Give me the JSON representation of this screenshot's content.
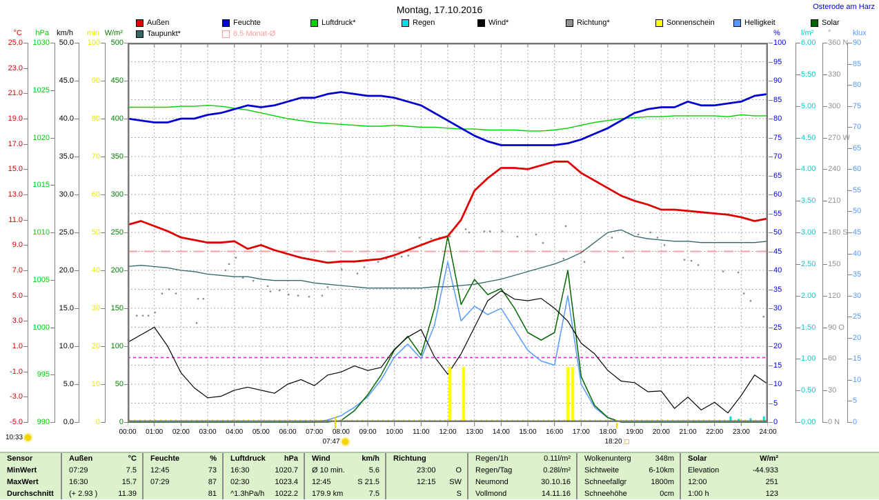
{
  "header": {
    "title": "Montag, 17.10.2016",
    "station": "Osterode am Harz"
  },
  "legend": {
    "row1": [
      {
        "label": "Außen",
        "color": "#e00000"
      },
      {
        "label": "Feuchte",
        "color": "#0000d0"
      },
      {
        "label": "Luftdruck*",
        "color": "#00d000"
      },
      {
        "label": "Regen",
        "color": "#00e0e0"
      },
      {
        "label": "Wind*",
        "color": "#000000"
      },
      {
        "label": "Richtung*",
        "color": "#909090"
      },
      {
        "label": "Sonnenschein",
        "color": "#ffff00"
      },
      {
        "label": "Helligkeit",
        "color": "#5599ff"
      },
      {
        "label": "Solar",
        "color": "#006600"
      }
    ],
    "row2": [
      {
        "label": "Taupunkt*",
        "color": "#336666"
      },
      {
        "label": "8.5 Monat-Ø",
        "color": "#ff9b9b",
        "open": true,
        "text_color": "#ff9b9b"
      }
    ]
  },
  "axes": {
    "left": [
      {
        "unit": "°C",
        "color": "#dd0000",
        "ticks": [
          "25.0",
          "23.0",
          "21.0",
          "19.0",
          "17.0",
          "15.0",
          "13.0",
          "11.0",
          "9.0",
          "7.0",
          "5.0",
          "3.0",
          "1.0",
          "-1.0",
          "-3.0",
          "-5.0"
        ]
      },
      {
        "unit": "hPa",
        "color": "#00cc00",
        "ticks": [
          "1030",
          "1025",
          "1020",
          "1015",
          "1010",
          "1005",
          "1000",
          "995",
          "990"
        ]
      },
      {
        "unit": "km/h",
        "color": "#000000",
        "ticks": [
          "50.0",
          "45.0",
          "40.0",
          "35.0",
          "30.0",
          "25.0",
          "20.0",
          "15.0",
          "10.0",
          "5.0",
          "0.0"
        ]
      },
      {
        "unit": "min",
        "color": "#e8e800",
        "ticks": [
          "100",
          "90",
          "80",
          "70",
          "60",
          "50",
          "40",
          "30",
          "20",
          "10",
          "0"
        ]
      },
      {
        "unit": "W/m²",
        "color": "#008000",
        "ticks": [
          "500",
          "450",
          "400",
          "350",
          "300",
          "250",
          "200",
          "150",
          "100",
          "50",
          "0"
        ]
      }
    ],
    "right": [
      {
        "unit": "%",
        "color": "#0000e0",
        "ticks": [
          "100",
          "95",
          "90",
          "85",
          "80",
          "75",
          "70",
          "65",
          "60",
          "55",
          "50",
          "45",
          "40",
          "35",
          "30",
          "25",
          "20",
          "15",
          "10",
          "5",
          "0"
        ]
      },
      {
        "unit": "l/m²",
        "color": "#00cccc",
        "ticks": [
          "6.00",
          "5.50",
          "5.00",
          "4.50",
          "4.00",
          "3.50",
          "3.00",
          "2.50",
          "2.00",
          "1.50",
          "1.00",
          "0.50",
          "0.00"
        ]
      },
      {
        "unit": "°",
        "color": "#909090",
        "ticks": [
          "360 N",
          "330",
          "300",
          "270 W",
          "240",
          "210",
          "180 S",
          "150",
          "120",
          "90 O",
          "60",
          "30",
          "0 N"
        ]
      },
      {
        "unit": "klux",
        "color": "#5599ff",
        "ticks": [
          "90",
          "85",
          "80",
          "75",
          "70",
          "65",
          "60",
          "55",
          "50",
          "45",
          "40",
          "35",
          "30",
          "25",
          "20",
          "15",
          "10",
          "5",
          "0"
        ]
      }
    ]
  },
  "x_axis": {
    "labels": [
      "00:00",
      "01:00",
      "02:00",
      "03:00",
      "04:00",
      "05:00",
      "06:00",
      "07:00",
      "08:00",
      "09:00",
      "10:00",
      "11:00",
      "12:00",
      "13:00",
      "14:00",
      "15:00",
      "16:00",
      "17:00",
      "18:00",
      "19:00",
      "20:00",
      "21:00",
      "22:00",
      "23:00",
      "24:00"
    ]
  },
  "markers": {
    "sunshine_duration": "10:33",
    "sunrise": "07:47",
    "sunset": "18:20"
  },
  "chart_data": {
    "type": "line",
    "title": "Montag, 17.10.2016",
    "x_unit": "hours",
    "t_start": 0,
    "t_step": 0.5,
    "axis_ranges": {
      "°C": [
        -5,
        25
      ],
      "hPa": [
        990,
        1030
      ],
      "km/h": [
        0,
        50
      ],
      "min": [
        0,
        100
      ],
      "W/m²": [
        0,
        500
      ],
      "%": [
        0,
        100
      ],
      "l/m²": [
        0,
        6
      ],
      "°": [
        0,
        360
      ],
      "klux": [
        0,
        90
      ]
    },
    "series": [
      {
        "name": "Helligkeit",
        "unit": "klux",
        "color": "#5599ff",
        "width": 1.5,
        "values": [
          0,
          0,
          0,
          0,
          0,
          0,
          0,
          0,
          0,
          0,
          0,
          0,
          0,
          0,
          0,
          0.5,
          1.5,
          3.5,
          6,
          10,
          15.5,
          18.5,
          15,
          23,
          38,
          24,
          27.5,
          25.5,
          27,
          22,
          17,
          14.5,
          13.5,
          30,
          9,
          3.5,
          1,
          0,
          0,
          0,
          0,
          0,
          0,
          0,
          0,
          0,
          0,
          0,
          0
        ]
      },
      {
        "name": "Solar",
        "unit": "W/m²",
        "color": "#006600",
        "width": 1.5,
        "values": [
          0,
          0,
          0,
          0,
          0,
          0,
          0,
          0,
          0,
          0,
          0,
          0,
          0,
          0,
          0,
          0,
          2,
          15,
          36,
          62,
          95,
          113,
          88,
          150,
          245,
          155,
          188,
          168,
          176,
          150,
          118,
          108,
          118,
          200,
          60,
          22,
          6,
          0,
          0,
          0,
          0,
          0,
          0,
          0,
          0,
          0,
          0,
          0,
          0
        ]
      },
      {
        "name": "Luftdruck",
        "unit": "hPa",
        "color": "#00d000",
        "width": 1.4,
        "values": [
          1023.2,
          1023.2,
          1023.2,
          1023.2,
          1023.3,
          1023.3,
          1023.4,
          1023.3,
          1023.1,
          1022.9,
          1022.6,
          1022.3,
          1022.0,
          1021.8,
          1021.6,
          1021.5,
          1021.4,
          1021.3,
          1021.2,
          1021.2,
          1021.3,
          1021.2,
          1021.1,
          1021.1,
          1021.0,
          1020.9,
          1020.9,
          1020.8,
          1020.8,
          1020.8,
          1020.7,
          1020.7,
          1020.8,
          1021.0,
          1021.3,
          1021.6,
          1021.8,
          1022.0,
          1022.1,
          1022.2,
          1022.2,
          1022.3,
          1022.3,
          1022.3,
          1022.3,
          1022.2,
          1022.4,
          1022.3,
          1022.3
        ]
      },
      {
        "name": "Taupunkt",
        "unit": "°C",
        "color": "#336666",
        "width": 1.3,
        "values": [
          7.3,
          7.4,
          7.3,
          7.2,
          7.0,
          6.9,
          6.7,
          6.6,
          6.5,
          6.5,
          6.3,
          6.2,
          6.2,
          6.2,
          6.0,
          5.9,
          5.8,
          5.7,
          5.6,
          5.6,
          5.6,
          5.6,
          5.6,
          5.7,
          5.7,
          5.8,
          5.9,
          6.1,
          6.3,
          6.6,
          6.9,
          7.2,
          7.5,
          7.9,
          8.4,
          9.2,
          10.0,
          10.2,
          9.7,
          9.5,
          9.4,
          9.3,
          9.3,
          9.2,
          9.2,
          9.2,
          9.2,
          9.2,
          9.3
        ]
      },
      {
        "name": "Wind",
        "unit": "km/h",
        "color": "#000000",
        "width": 1.2,
        "values": [
          10.5,
          11.5,
          12.5,
          10.0,
          6.5,
          4.5,
          3.2,
          3.4,
          4.2,
          4.6,
          4.2,
          3.8,
          5.0,
          5.6,
          4.8,
          6.2,
          6.6,
          7.4,
          6.8,
          7.2,
          9.6,
          11.2,
          12.2,
          8.6,
          6.3,
          9.0,
          12.5,
          16.0,
          17.3,
          16.2,
          16.0,
          16.3,
          15.0,
          13.3,
          10.4,
          9.0,
          6.8,
          5.4,
          5.2,
          4.0,
          4.1,
          1.8,
          3.3,
          1.6,
          2.6,
          1.2,
          3.5,
          6.2,
          5.0
        ]
      },
      {
        "name": "Feuchte",
        "unit": "%",
        "color": "#0000d0",
        "width": 2.8,
        "values": [
          80,
          79.5,
          79,
          79,
          80,
          80,
          81,
          81.5,
          82.5,
          83.5,
          83,
          83.5,
          84.5,
          85.5,
          85.5,
          86.5,
          87,
          86.5,
          86,
          86,
          85.5,
          84.5,
          83.5,
          81.5,
          79.5,
          77.5,
          75.5,
          74,
          73,
          73,
          73,
          73,
          73,
          73.5,
          74.5,
          76,
          77.5,
          79.5,
          81.5,
          82.5,
          83,
          83,
          84.5,
          83.5,
          83.5,
          84,
          84.5,
          86,
          86.5
        ]
      },
      {
        "name": "Außen",
        "unit": "°C",
        "color": "#e00000",
        "width": 2.8,
        "values": [
          10.6,
          10.9,
          10.5,
          10.1,
          9.6,
          9.4,
          9.2,
          9.2,
          9.3,
          8.7,
          9.0,
          8.6,
          8.3,
          8.0,
          7.8,
          7.6,
          7.7,
          7.7,
          7.8,
          7.9,
          8.2,
          8.6,
          9.0,
          9.4,
          9.7,
          11.0,
          13.3,
          14.3,
          15.1,
          15.1,
          15.0,
          15.3,
          15.6,
          15.6,
          14.7,
          14.1,
          13.5,
          12.9,
          12.5,
          12.2,
          11.8,
          11.8,
          11.7,
          11.6,
          11.5,
          11.4,
          11.2,
          10.9,
          11.1
        ]
      }
    ],
    "direction_points": {
      "name": "Richtung",
      "unit": "°",
      "color": "#8a8a8a",
      "points": [
        [
          0.34,
          101
        ],
        [
          0.57,
          101
        ],
        [
          0.78,
          101
        ],
        [
          1.03,
          104
        ],
        [
          1.29,
          122
        ],
        [
          1.55,
          126
        ],
        [
          1.81,
          122
        ],
        [
          2.59,
          94
        ],
        [
          2.64,
          117
        ],
        [
          2.84,
          117
        ],
        [
          3.67,
          144
        ],
        [
          3.8,
          150
        ],
        [
          4.06,
          156
        ],
        [
          4.32,
          137
        ],
        [
          4.71,
          134
        ],
        [
          5.25,
          129
        ],
        [
          5.35,
          124
        ],
        [
          5.69,
          125
        ],
        [
          6.03,
          121
        ],
        [
          6.39,
          120
        ],
        [
          6.8,
          119
        ],
        [
          7.29,
          120
        ],
        [
          7.5,
          128
        ],
        [
          8.02,
          145
        ],
        [
          8.61,
          141
        ],
        [
          8.87,
          147
        ],
        [
          9.13,
          154
        ],
        [
          9.39,
          152
        ],
        [
          9.7,
          155
        ],
        [
          10.01,
          156
        ],
        [
          10.27,
          157
        ],
        [
          10.52,
          158
        ],
        [
          10.94,
          175
        ],
        [
          11.38,
          174
        ],
        [
          11.69,
          175
        ],
        [
          12.08,
          176
        ],
        [
          12.33,
          186
        ],
        [
          12.67,
          183
        ],
        [
          12.8,
          180
        ],
        [
          13.37,
          181
        ],
        [
          13.58,
          181
        ],
        [
          14.04,
          181
        ],
        [
          14.61,
          176
        ],
        [
          15.31,
          178
        ],
        [
          15.57,
          170
        ],
        [
          16.34,
          155
        ],
        [
          16.42,
          186
        ],
        [
          17.12,
          152
        ],
        [
          18.15,
          175
        ],
        [
          18.57,
          156
        ],
        [
          19.14,
          178
        ],
        [
          19.6,
          180
        ],
        [
          19.86,
          175
        ],
        [
          20.12,
          168
        ],
        [
          20.87,
          154
        ],
        [
          21.13,
          153
        ],
        [
          21.39,
          149
        ],
        [
          22.32,
          143
        ],
        [
          22.89,
          142
        ],
        [
          23.1,
          122
        ],
        [
          23.35,
          115
        ],
        [
          23.84,
          100
        ]
      ]
    },
    "sunshine_bars": {
      "name": "Sonnenschein",
      "unit": "min",
      "color": "#ffff00",
      "bars": [
        [
          12.08,
          14.5
        ],
        [
          12.59,
          14.5
        ],
        [
          16.5,
          14.5
        ],
        [
          16.68,
          14.5
        ]
      ]
    },
    "rain_bars": {
      "name": "Regen",
      "unit": "l/m²",
      "color": "#00e0e0",
      "bars": [
        [
          22.6,
          0.09
        ],
        [
          22.9,
          0.05
        ],
        [
          23.35,
          0.06
        ],
        [
          23.85,
          0.09
        ]
      ]
    },
    "reference_lines": [
      {
        "label": "8.5 Monat-Ø",
        "unit": "°C",
        "value": 8.5,
        "color": "#ff9b9b",
        "dash": "14 10",
        "width": 2
      },
      {
        "label": "",
        "unit": "°C",
        "value": 0.1,
        "color": "#ff00ff",
        "dash": "4 4",
        "width": 1.5
      }
    ],
    "grid": true,
    "legend_position": "top"
  },
  "table": {
    "row_labels": [
      "Sensor",
      "MinWert",
      "MaxWert",
      "Durchschnitt"
    ],
    "columns": [
      {
        "name": "aussen",
        "header": [
          "Außen",
          "°C"
        ],
        "rows": [
          [
            "07:29",
            "7.5"
          ],
          [
            "16:30",
            "15.7"
          ],
          [
            "(+ 2.93 )",
            "11.39"
          ]
        ]
      },
      {
        "name": "feuchte",
        "header": [
          "Feuchte",
          "%"
        ],
        "rows": [
          [
            "12:45",
            "73"
          ],
          [
            "07:29",
            "87"
          ],
          [
            "",
            "81"
          ]
        ]
      },
      {
        "name": "luftdruck",
        "header": [
          "Luftdruck",
          "hPa"
        ],
        "rows": [
          [
            "16:30",
            "1020.7"
          ],
          [
            "02:30",
            "1023.4"
          ],
          [
            "^1.3hPa/h",
            "1022.2"
          ]
        ]
      },
      {
        "name": "wind",
        "header": [
          "Wind",
          "km/h"
        ],
        "rows": [
          [
            "Ø 10 min.",
            "5.6"
          ],
          [
            "12:45",
            "S 21.5"
          ],
          [
            "179.9 km",
            "7.5"
          ]
        ]
      },
      {
        "name": "richtung",
        "header": [
          "Richtung",
          ""
        ],
        "rows": [
          [
            "23:00",
            "O"
          ],
          [
            "12:15",
            "SW"
          ],
          [
            "",
            "S"
          ]
        ]
      },
      {
        "name": "regen",
        "plain_header": true,
        "header": [
          "Regen/1h",
          "0.11l/m²"
        ],
        "rows": [
          [
            "Regen/Tag",
            "0.28l/m²"
          ],
          [
            "Neumond",
            "30.10.16"
          ],
          [
            "Vollmond",
            "14.11.16"
          ]
        ]
      },
      {
        "name": "wolken",
        "plain_header": true,
        "header": [
          "Wolkenunterg",
          "348m"
        ],
        "rows": [
          [
            "Sichtweite",
            "6-10km"
          ],
          [
            "Schneefallgr",
            "1800m"
          ],
          [
            "Schneehöhe",
            "0cm"
          ]
        ]
      },
      {
        "name": "solar",
        "header": [
          "Solar",
          "W/m²"
        ],
        "rows": [
          [
            "Elevation",
            "-44.933"
          ],
          [
            "12:00",
            "251"
          ],
          [
            "1:00 h",
            "123"
          ]
        ]
      }
    ]
  }
}
